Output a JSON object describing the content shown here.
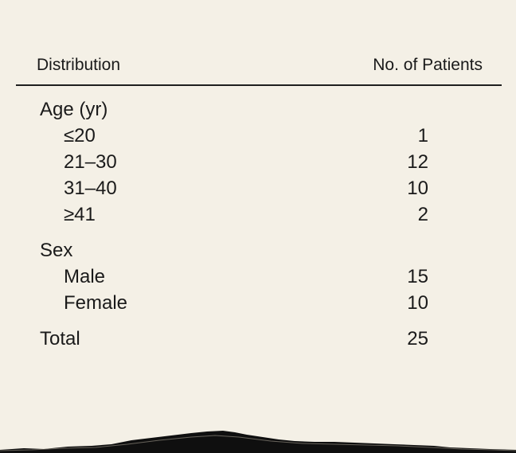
{
  "table": {
    "header": {
      "left": "Distribution",
      "right": "No. of Patients"
    },
    "groups": [
      {
        "label": "Age (yr)",
        "rows": [
          {
            "label": "≤20",
            "value": "1"
          },
          {
            "label": "21–30",
            "value": "12"
          },
          {
            "label": "31–40",
            "value": "10"
          },
          {
            "label": "≥41",
            "value": "2"
          }
        ]
      },
      {
        "label": "Sex",
        "rows": [
          {
            "label": "Male",
            "value": "15"
          },
          {
            "label": "Female",
            "value": "10"
          }
        ]
      }
    ],
    "total": {
      "label": "Total",
      "value": "25"
    }
  }
}
